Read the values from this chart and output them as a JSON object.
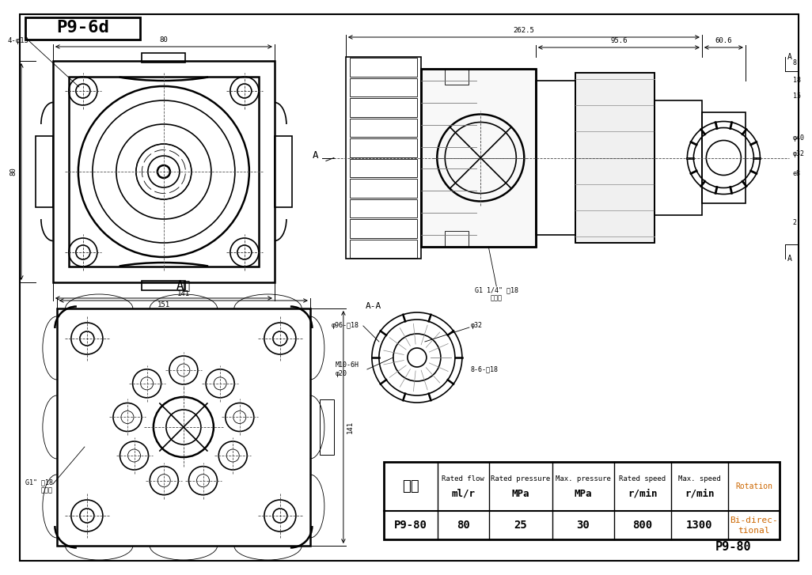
{
  "title": "P9-6d",
  "subtitle": "P9-80",
  "bg_color": "#ffffff",
  "line_color": "#000000",
  "table_headers": [
    "型号",
    "Rated flow\nml/r",
    "Rated pressure\nMPa",
    "Max. pressure\nMPa",
    "Rated speed\nr/min",
    "Max. speed\nr/min",
    "Rotation"
  ],
  "table_row": [
    "P9-80",
    "80",
    "25",
    "30",
    "800",
    "1300",
    "Bi-direc-\ntional"
  ],
  "dim_80_top": "80",
  "dim_151": "151",
  "dim_80_left": "80",
  "dim_4phi13": "4-φ13",
  "dim_141_top": "141",
  "dim_141_right": "141",
  "dim_262_5": "262.5",
  "dim_95_6": "95.6",
  "dim_60_6": "60.6",
  "dim_8": "8",
  "dim_18": "18",
  "dim_15": "15",
  "dim_2": "2",
  "dim_e8": "e8",
  "dim_phi32": "φ32",
  "dim_phi40": "φ40",
  "label_AA": "A-A",
  "label_A_dir": "A向",
  "label_A_arrow": "A",
  "label_phi96": "φ96-孔18",
  "label_phi32_sec": "φ32",
  "label_M10": "M10-6H\nφ20",
  "label_8_6": "8-6-孔18",
  "label_port1": "G1 1/4\" 管18\n进油口",
  "label_port2": "G1\" 管18\n出油口",
  "label_p980": "P9-80"
}
